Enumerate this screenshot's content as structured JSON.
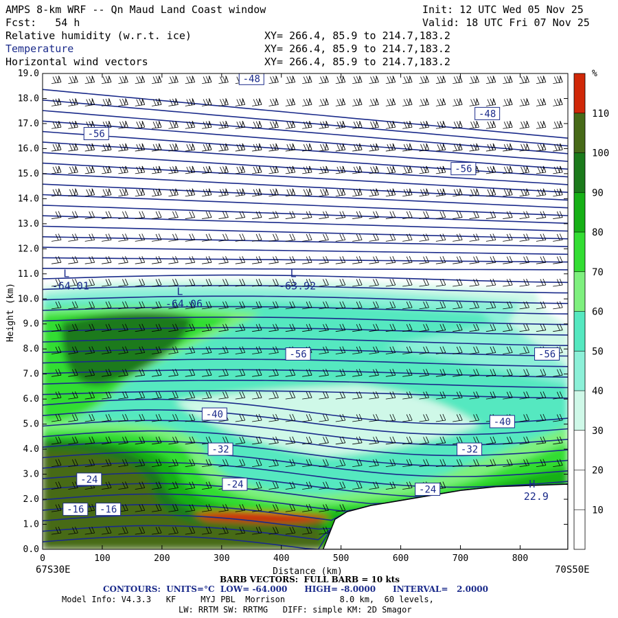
{
  "header": {
    "title": "AMPS 8-km WRF -- Qn Maud Land Coast window",
    "init": "Init: 12 UTC Wed 05 Nov 25",
    "fcst": "Fcst:   54 h",
    "valid": "Valid: 18 UTC Fri 07 Nov 25",
    "field1": "Relative humidity (w.r.t. ice)",
    "field2": "Temperature",
    "field3": "Horizontal wind vectors",
    "xy1": "XY= 266.4, 85.9 to 214.7,183.2",
    "xy2": "XY= 266.4, 85.9 to 214.7,183.2",
    "xy3": "XY= 266.4, 85.9 to 214.7,183.2"
  },
  "footer": {
    "left_coord": "67S30E",
    "right_coord": "70S50E",
    "barb": "BARB VECTORS:  FULL BARB = 10 kts",
    "contours": "CONTOURS:  UNITS=°C  LOW= -64.000      HIGH= -8.0000      INTERVAL=   2.0000",
    "model1": "Model Info: V4.3.3   KF     MYJ PBL  Morrison           8.0 km,  60 levels,",
    "model2": "LW: RRTM SW: RRTMG   DIFF: simple KM: 2D Smagor"
  },
  "colors": {
    "rh_30_40": "#cff8e8",
    "rh_40_50": "#8cf0d8",
    "rh_50_60": "#55e8c0",
    "rh_60_70": "#7ef07e",
    "rh_70_80": "#33dd33",
    "rh_80_90": "#16b016",
    "rh_90_100": "#1b7a1b",
    "rh_100_110": "#476a18",
    "rh_110_plus": "#d02808",
    "temperature": "#1a2a8a",
    "terrain": "#ffffff"
  },
  "chart_data": {
    "type": "cross-section",
    "xlabel": "Distance (km)",
    "ylabel": "Height (km)",
    "xlim": [
      0,
      880
    ],
    "ylim": [
      0,
      19
    ],
    "x_ticks": [
      0,
      100,
      200,
      300,
      400,
      500,
      600,
      700,
      800
    ],
    "y_ticks": [
      "0.0",
      "1.0",
      "2.0",
      "3.0",
      "4.0",
      "5.0",
      "6.0",
      "7.0",
      "8.0",
      "9.0",
      "10.0",
      "11.0",
      "12.0",
      "13.0",
      "14.0",
      "15.0",
      "16.0",
      "17.0",
      "18.0",
      "19.0"
    ],
    "colorbar": {
      "unit": "%",
      "levels": [
        10,
        20,
        30,
        40,
        50,
        60,
        70,
        80,
        90,
        100,
        110
      ]
    },
    "temperature_labels": [
      {
        "text": "-48",
        "x": 350,
        "y": 18.8
      },
      {
        "text": "-48",
        "x": 745,
        "y": 17.4
      },
      {
        "text": "-56",
        "x": 90,
        "y": 16.6
      },
      {
        "text": "-56",
        "x": 705,
        "y": 15.2
      },
      {
        "text": "-56",
        "x": 428,
        "y": 7.8
      },
      {
        "text": "-56",
        "x": 845,
        "y": 7.8
      },
      {
        "text": "-40",
        "x": 288,
        "y": 5.4
      },
      {
        "text": "-40",
        "x": 770,
        "y": 5.1
      },
      {
        "text": "-32",
        "x": 298,
        "y": 4.0
      },
      {
        "text": "-32",
        "x": 715,
        "y": 4.0
      },
      {
        "text": "-24",
        "x": 78,
        "y": 2.8
      },
      {
        "text": "-24",
        "x": 322,
        "y": 2.6
      },
      {
        "text": "-24",
        "x": 645,
        "y": 2.4
      },
      {
        "text": "-16",
        "x": 55,
        "y": 1.6
      },
      {
        "text": "-16",
        "x": 110,
        "y": 1.6
      }
    ],
    "extrema": [
      {
        "type": "L",
        "value": "-64.01",
        "x": 40,
        "y": 10.7
      },
      {
        "type": "L",
        "value": "-64.06",
        "x": 230,
        "y": 10.0
      },
      {
        "type": "L",
        "value": "-63.92",
        "x": 420,
        "y": 10.7
      },
      {
        "type": "H",
        "value": "22.9",
        "x": 820,
        "y": 2.3
      }
    ],
    "terrain_profile": [
      {
        "x": 470,
        "y": 0
      },
      {
        "x": 490,
        "y": 1.2
      },
      {
        "x": 510,
        "y": 1.5
      },
      {
        "x": 550,
        "y": 1.75
      },
      {
        "x": 600,
        "y": 1.95
      },
      {
        "x": 650,
        "y": 2.15
      },
      {
        "x": 700,
        "y": 2.35
      },
      {
        "x": 760,
        "y": 2.5
      },
      {
        "x": 880,
        "y": 2.6
      }
    ]
  }
}
